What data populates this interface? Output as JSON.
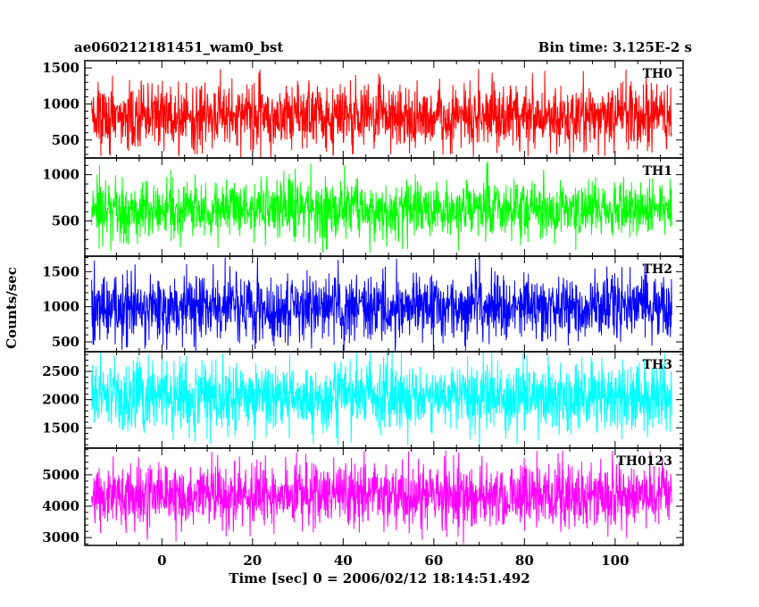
{
  "chart_data": {
    "type": "line",
    "title": "ae060212181451_wam0_bst",
    "subtitle": "Bin time: 3.125E-2 s",
    "xlabel": "Time [sec] 0 = 2006/02/12 18:14:51.492",
    "ylabel": "Counts/sec",
    "xlim": [
      -17,
      115
    ],
    "x_range_data": [
      -15.5,
      112.5
    ],
    "xticks": [
      0,
      20,
      40,
      60,
      80,
      100
    ],
    "xtick_labels": [
      "0",
      "20",
      "40",
      "60",
      "80",
      "100"
    ],
    "panels": [
      {
        "name": "TH0",
        "color": "#ff0000",
        "ylim": [
          250,
          1600
        ],
        "yticks": [
          500,
          1000,
          1500
        ],
        "ytick_labels": [
          "500",
          "1000",
          "1500"
        ],
        "mean": 830,
        "spread": 230,
        "min": 250,
        "max": 1500
      },
      {
        "name": "TH1",
        "color": "#00ff00",
        "ylim": [
          120,
          1180
        ],
        "yticks": [
          500,
          1000
        ],
        "ytick_labels": [
          "500",
          "1000"
        ],
        "mean": 620,
        "spread": 160,
        "min": 150,
        "max": 1150
      },
      {
        "name": "TH2",
        "color": "#0000ff",
        "ylim": [
          360,
          1720
        ],
        "yticks": [
          500,
          1000,
          1500
        ],
        "ytick_labels": [
          "500",
          "1000",
          "1500"
        ],
        "mean": 1000,
        "spread": 240,
        "min": 360,
        "max": 1720
      },
      {
        "name": "TH3",
        "color": "#00ffff",
        "ylim": [
          1140,
          2850
        ],
        "yticks": [
          1500,
          2000,
          2500
        ],
        "ytick_labels": [
          "1500",
          "2000",
          "2500"
        ],
        "mean": 2050,
        "spread": 300,
        "min": 1150,
        "max": 2850
      },
      {
        "name": "TH0123",
        "color": "#ff00ff",
        "ylim": [
          2750,
          5850
        ],
        "yticks": [
          3000,
          4000,
          5000
        ],
        "ytick_labels": [
          "3000",
          "4000",
          "5000"
        ],
        "mean": 4350,
        "spread": 520,
        "min": 2750,
        "max": 5850
      }
    ]
  }
}
